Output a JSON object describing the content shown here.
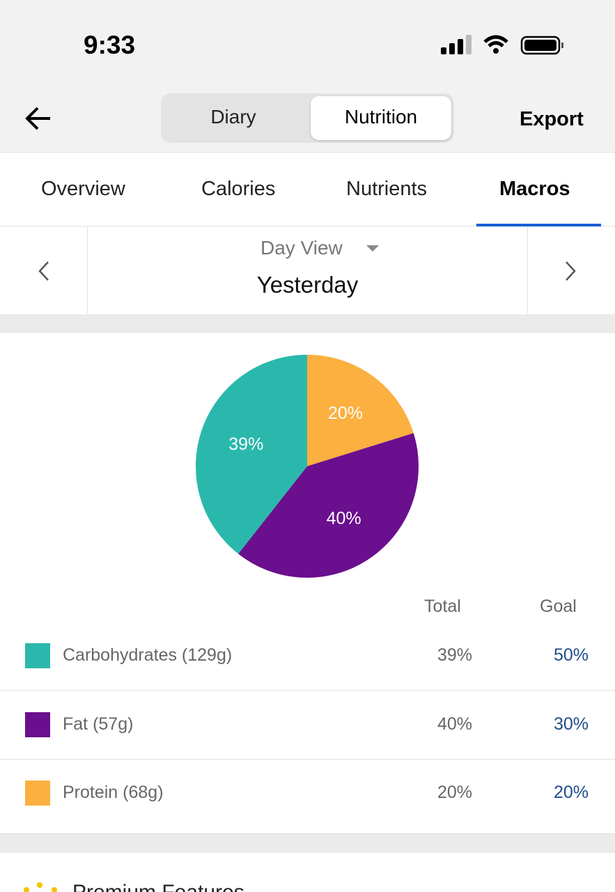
{
  "status_bar": {
    "time": "9:33"
  },
  "nav": {
    "segments": [
      "Diary",
      "Nutrition"
    ],
    "export": "Export"
  },
  "tabs": [
    "Overview",
    "Calories",
    "Nutrients",
    "Macros"
  ],
  "date_picker": {
    "view": "Day View",
    "date": "Yesterday"
  },
  "chart_data": {
    "type": "pie",
    "values": [
      20,
      40,
      39
    ],
    "value_labels": [
      "20%",
      "40%",
      "39%"
    ],
    "colors": [
      "#fbb040",
      "#6a0f8e",
      "#2bb8ac"
    ]
  },
  "table": {
    "headers": [
      "Total",
      "Goal"
    ],
    "rows": [
      {
        "label": "Carbohydrates (129g)",
        "total": "39%",
        "goal": "50%",
        "color": "#2bb8ac"
      },
      {
        "label": "Fat (57g)",
        "total": "40%",
        "goal": "30%",
        "color": "#6a0f8e"
      },
      {
        "label": "Protein (68g)",
        "total": "20%",
        "goal": "20%",
        "color": "#fbb040"
      }
    ]
  },
  "footer": {
    "title": "Premium Features"
  }
}
